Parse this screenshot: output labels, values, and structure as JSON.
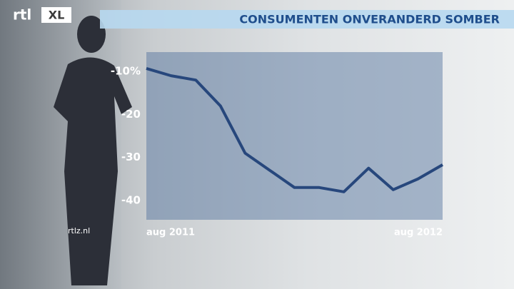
{
  "logo": "rtl",
  "logo_badge": "XL",
  "watermark": "rtlz.nl",
  "chart_data": {
    "type": "line",
    "title": "CONSUMENTEN ONVERANDERD SOMBER",
    "categories": [
      "aug 2011",
      null,
      null,
      null,
      null,
      null,
      null,
      null,
      null,
      null,
      null,
      null,
      "aug 2012"
    ],
    "series": [
      {
        "color": "#27477c",
        "values": [
          -9.3,
          -11,
          -12,
          -18,
          -29,
          -33,
          -37,
          -37,
          -38,
          -32.5,
          -37.5,
          -35,
          -31.7
        ]
      }
    ],
    "ylim": [
      -44.5,
      -5.5
    ],
    "yticks": [
      {
        "value": -10,
        "label": "-10%"
      },
      -20,
      -30,
      -40
    ]
  }
}
